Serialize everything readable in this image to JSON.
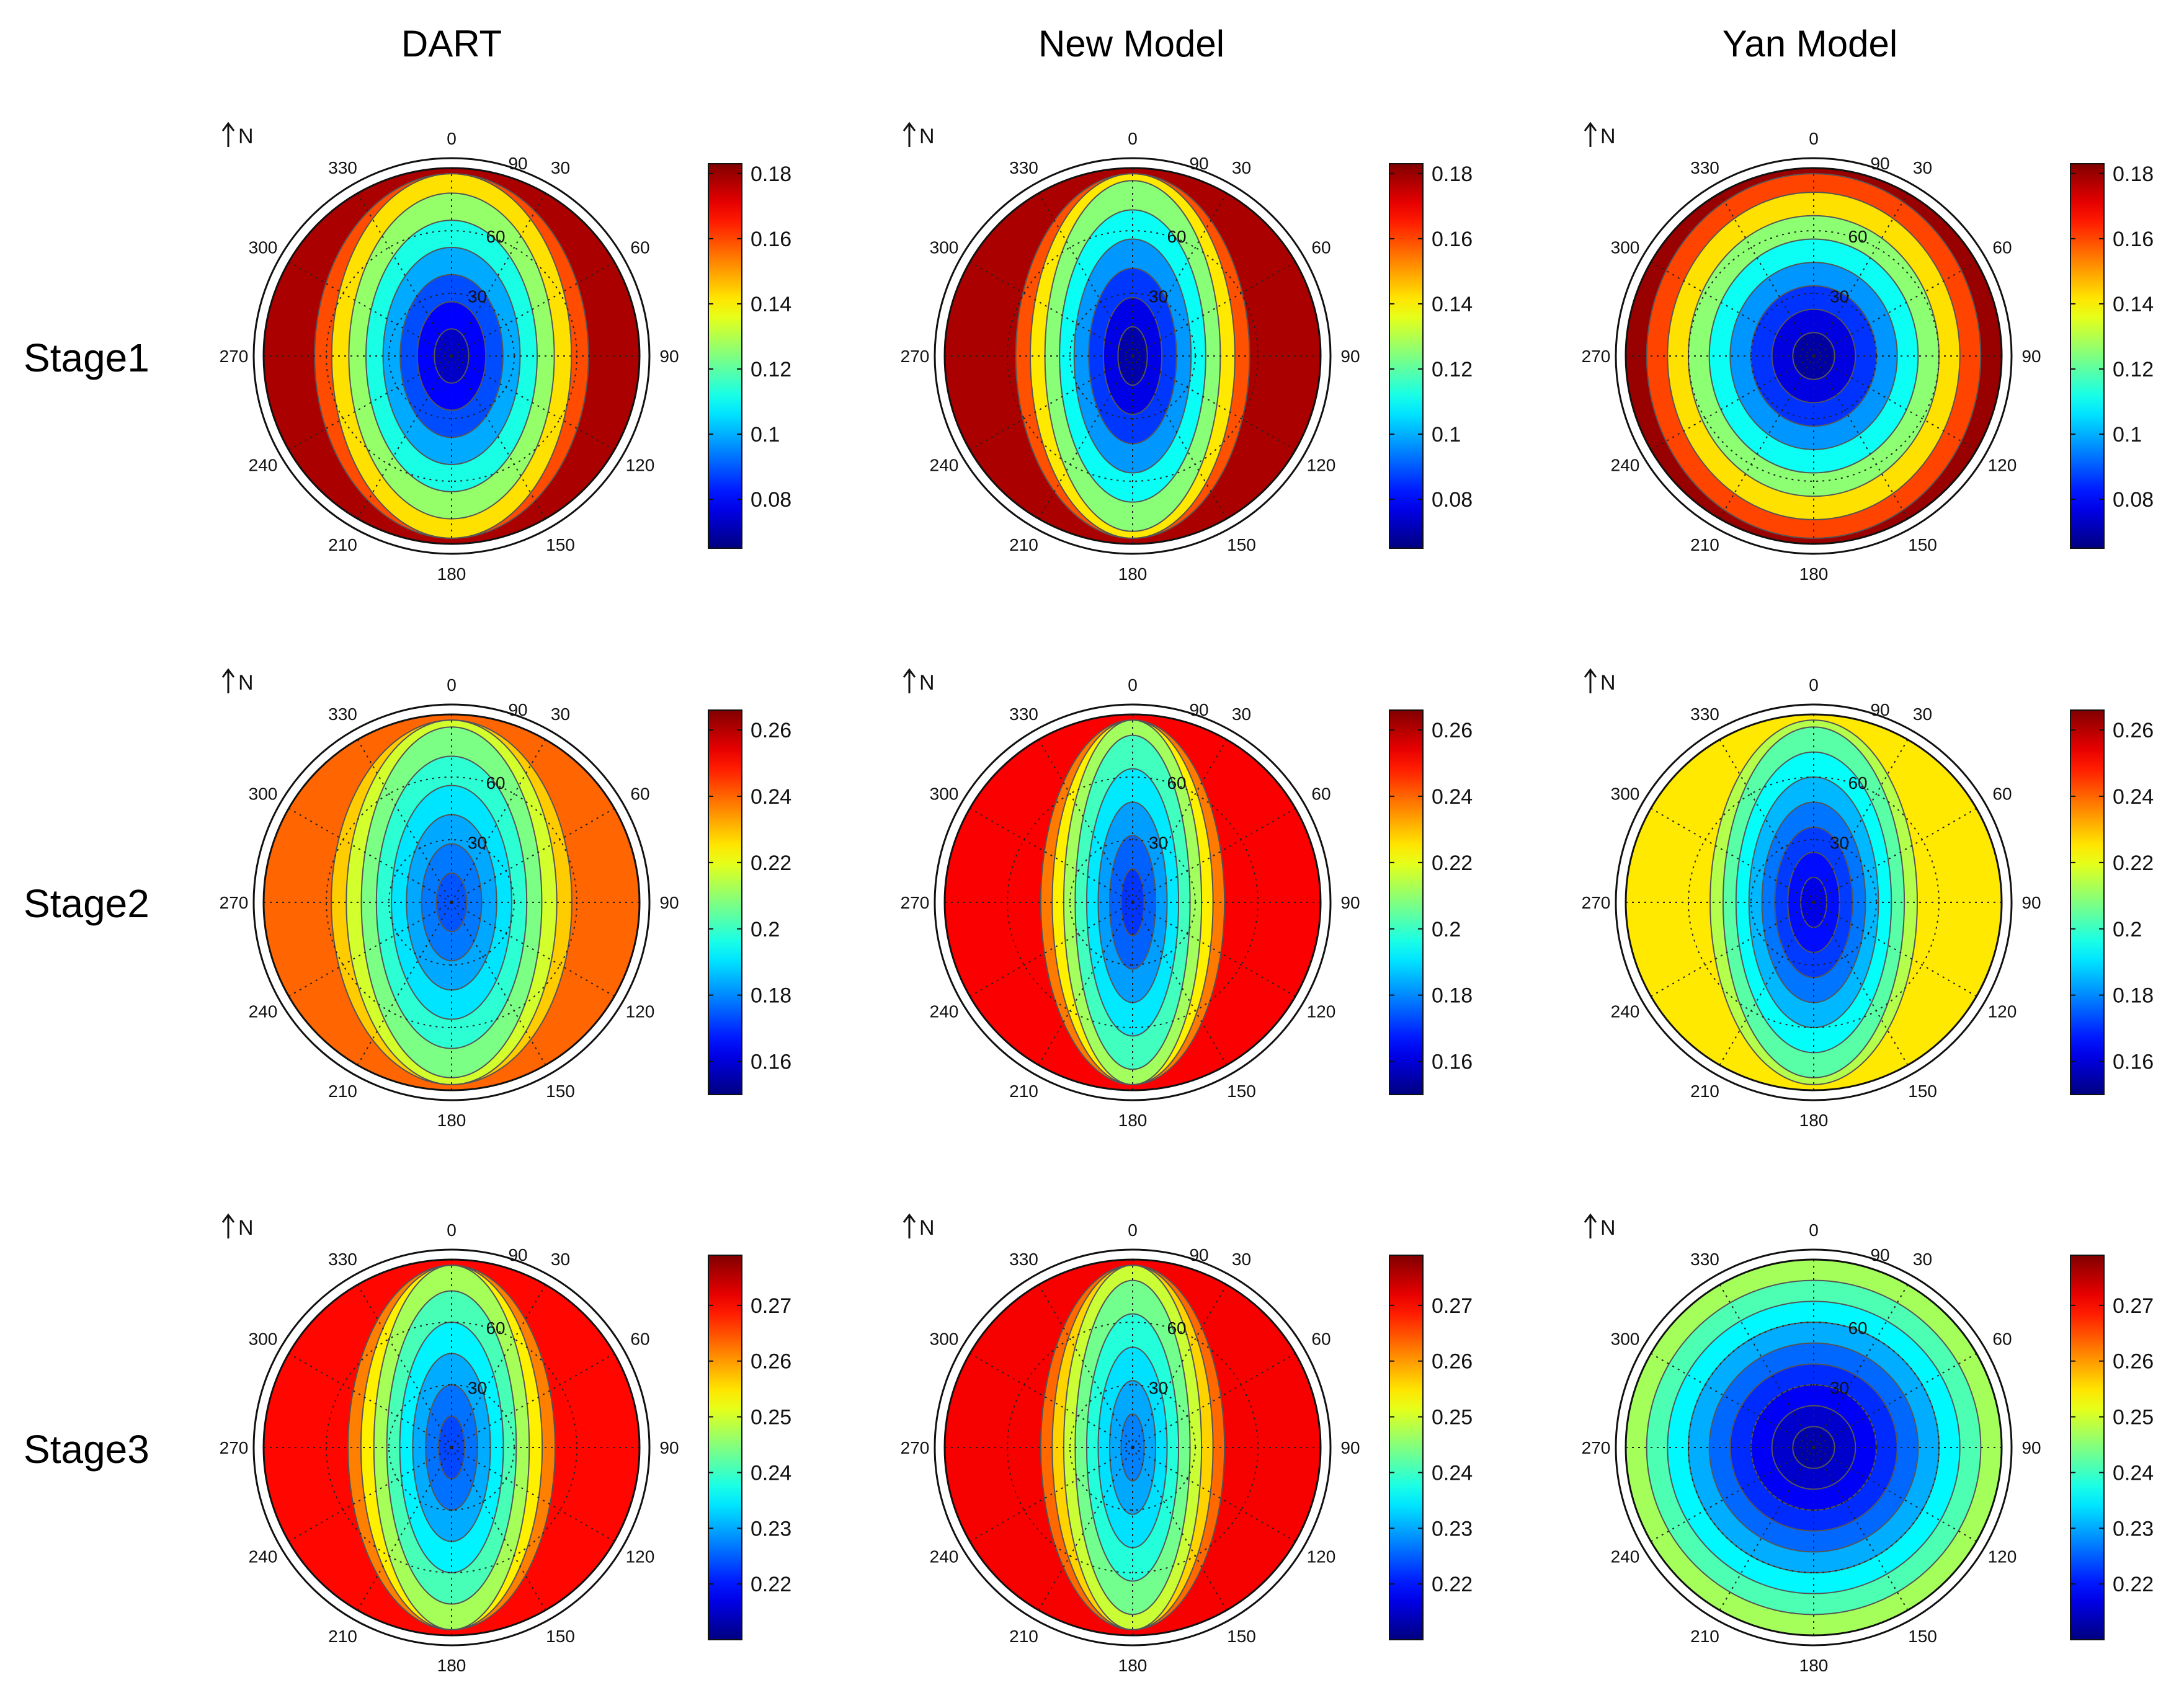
{
  "column_titles": [
    "DART",
    "New Model",
    "Yan Model"
  ],
  "row_titles": [
    "Stage1",
    "Stage2",
    "Stage3"
  ],
  "north_label": "N",
  "chart_data": [
    {
      "type": "heatmap",
      "subtype": "polar-contour",
      "rows": [
        "Stage1",
        "Stage2",
        "Stage3"
      ],
      "columns": [
        "DART",
        "New Model",
        "Yan Model"
      ],
      "azimuth_tick_labels": [
        "0",
        "30",
        "60",
        "90",
        "120",
        "150",
        "180",
        "210",
        "240",
        "270",
        "300",
        "330"
      ],
      "zenith_tick_labels": [
        "30",
        "60",
        "90"
      ],
      "stages": [
        {
          "name": "Stage1",
          "colorbar_ticks": [
            "0.08",
            "0.1",
            "0.12",
            "0.14",
            "0.16",
            "0.18"
          ],
          "clim": [
            0.065,
            0.183
          ],
          "panels": [
            {
              "model": "DART",
              "center_value": 0.07,
              "edge_value": 0.178,
              "sx": 0.82,
              "sy": 1.3
            },
            {
              "model": "New Model",
              "center_value": 0.067,
              "edge_value": 0.178,
              "sx": 0.7,
              "sy": 1.4
            },
            {
              "model": "Yan Model",
              "center_value": 0.066,
              "edge_value": 0.18,
              "sx": 1.0,
              "sy": 1.12
            }
          ]
        },
        {
          "name": "Stage2",
          "colorbar_ticks": [
            "0.16",
            "0.18",
            "0.2",
            "0.22",
            "0.24",
            "0.26"
          ],
          "clim": [
            0.15,
            0.266
          ],
          "panels": [
            {
              "model": "DART",
              "center_value": 0.172,
              "edge_value": 0.24,
              "sx": 0.72,
              "sy": 1.4
            },
            {
              "model": "New Model",
              "center_value": 0.168,
              "edge_value": 0.252,
              "sx": 0.55,
              "sy": 1.6
            },
            {
              "model": "Yan Model",
              "center_value": 0.16,
              "edge_value": 0.225,
              "sx": 0.62,
              "sy": 1.2
            }
          ]
        },
        {
          "name": "Stage3",
          "colorbar_ticks": [
            "0.22",
            "0.23",
            "0.24",
            "0.25",
            "0.26",
            "0.27"
          ],
          "clim": [
            0.21,
            0.279
          ],
          "panels": [
            {
              "model": "DART",
              "center_value": 0.222,
              "edge_value": 0.27,
              "sx": 0.62,
              "sy": 1.5
            },
            {
              "model": "New Model",
              "center_value": 0.226,
              "edge_value": 0.271,
              "sx": 0.55,
              "sy": 1.6
            },
            {
              "model": "Yan Model",
              "center_value": 0.212,
              "edge_value": 0.247,
              "sx": 1.0,
              "sy": 1.0
            }
          ]
        }
      ]
    }
  ]
}
